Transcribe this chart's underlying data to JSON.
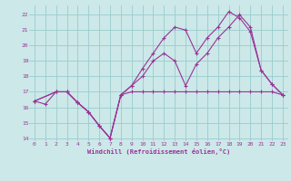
{
  "xlabel": "Windchill (Refroidissement éolien,°C)",
  "bg_color": "#cce8e8",
  "grid_color": "#99cccc",
  "line_color": "#993399",
  "xlim": [
    -0.5,
    23.5
  ],
  "ylim": [
    13.8,
    22.6
  ],
  "yticks": [
    14,
    15,
    16,
    17,
    18,
    19,
    20,
    21,
    22
  ],
  "xticks": [
    0,
    1,
    2,
    3,
    4,
    5,
    6,
    7,
    8,
    9,
    10,
    11,
    12,
    13,
    14,
    15,
    16,
    17,
    18,
    19,
    20,
    21,
    22,
    23
  ],
  "line1_x": [
    0,
    1,
    2,
    3,
    4,
    5,
    6,
    7,
    8,
    9,
    10,
    11,
    12,
    13,
    14,
    15,
    16,
    17,
    18,
    19,
    20,
    21,
    22,
    23
  ],
  "line1_y": [
    16.4,
    16.2,
    17.0,
    17.0,
    16.3,
    15.7,
    14.8,
    14.0,
    16.8,
    17.0,
    17.0,
    17.0,
    17.0,
    17.0,
    17.0,
    17.0,
    17.0,
    17.0,
    17.0,
    17.0,
    17.0,
    17.0,
    17.0,
    16.8
  ],
  "line2_x": [
    0,
    2,
    3,
    4,
    5,
    6,
    7,
    8,
    9,
    10,
    11,
    12,
    13,
    14,
    15,
    16,
    17,
    18,
    19,
    20,
    21,
    22,
    23
  ],
  "line2_y": [
    16.4,
    17.0,
    17.0,
    16.3,
    15.7,
    14.8,
    14.0,
    16.8,
    17.4,
    18.0,
    19.0,
    19.5,
    19.0,
    17.4,
    18.8,
    19.5,
    20.5,
    21.2,
    22.0,
    21.2,
    18.4,
    17.5,
    16.8
  ],
  "line3_x": [
    0,
    2,
    3,
    4,
    5,
    6,
    7,
    8,
    9,
    10,
    11,
    12,
    13,
    14,
    15,
    16,
    17,
    18,
    19,
    20,
    21,
    22,
    23
  ],
  "line3_y": [
    16.4,
    17.0,
    17.0,
    16.3,
    15.7,
    14.8,
    14.0,
    16.8,
    17.4,
    18.5,
    19.5,
    20.5,
    21.2,
    21.0,
    19.5,
    20.5,
    21.2,
    22.2,
    21.8,
    20.9,
    18.4,
    17.5,
    16.8
  ]
}
